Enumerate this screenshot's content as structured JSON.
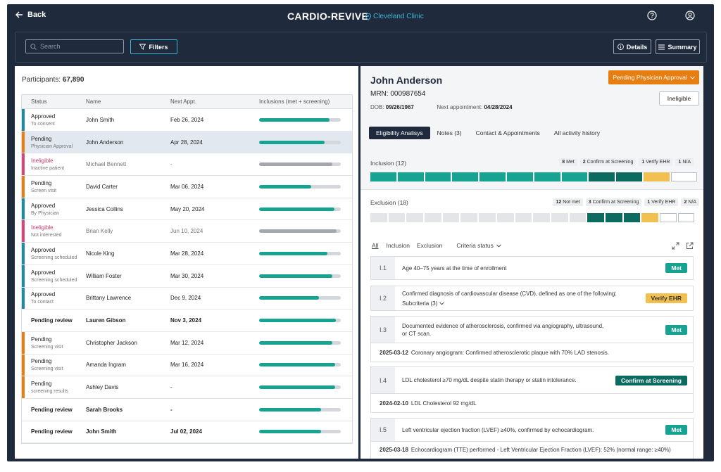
{
  "header": {
    "back_label": "Back",
    "title": "CARDIO-REVIVE",
    "location": "Cleveland Clinic"
  },
  "toolbar": {
    "search_placeholder": "Search",
    "filters_label": "Filters",
    "details_label": "Details",
    "summary_label": "Summary"
  },
  "participants": {
    "label": "Participants:",
    "count": "67,890",
    "columns": [
      "Status",
      "Name",
      "Next Appt.",
      "Inclusions (met + screening)"
    ],
    "rows": [
      {
        "status": "Approved",
        "sub": "To consent",
        "name": "John Smith",
        "appt": "Feb 26, 2024",
        "progress": 0.86,
        "bar": "#1c8aa6",
        "muted": false,
        "bold": false
      },
      {
        "status": "Pending",
        "sub": "Physician Approval",
        "name": "John Anderson",
        "appt": "Apr 28, 2024",
        "progress": 0.8,
        "bar": "#e77e11",
        "muted": false,
        "bold": false
      },
      {
        "status": "Ineligible",
        "sub": "Inactive patient",
        "name": "Michael Bennett",
        "appt": "-",
        "progress": 0.9,
        "bar": "#d6477a",
        "muted": true,
        "bold": false
      },
      {
        "status": "Pending",
        "sub": "Screen visit",
        "name": "David Carter",
        "appt": "Mar 06, 2024",
        "progress": 0.64,
        "bar": "#e77e11",
        "muted": false,
        "bold": false
      },
      {
        "status": "Approved",
        "sub": "By Physician",
        "name": "Jessica Collins",
        "appt": "May 20, 2024",
        "progress": 0.92,
        "bar": "#1c8aa6",
        "muted": false,
        "bold": false
      },
      {
        "status": "Ineligible",
        "sub": "Not interested",
        "name": "Brian Kelly",
        "appt": "Jun 10, 2024",
        "progress": 0.95,
        "bar": "#d6477a",
        "muted": true,
        "bold": false
      },
      {
        "status": "Approved",
        "sub": "Screening scheduled",
        "name": "Nicole King",
        "appt": "Mar 28, 2024",
        "progress": 0.84,
        "bar": "#1c8aa6",
        "muted": false,
        "bold": false
      },
      {
        "status": "Approved",
        "sub": "Screening scheduled",
        "name": "William Foster",
        "appt": "Mar 30, 2024",
        "progress": 0.9,
        "bar": "#1c8aa6",
        "muted": false,
        "bold": false
      },
      {
        "status": "Approved",
        "sub": "To contact",
        "name": "Brittany Lawrence",
        "appt": "Dec 9, 2024",
        "progress": 0.73,
        "bar": "#1c8aa6",
        "muted": false,
        "bold": false
      },
      {
        "status": "Pending review",
        "sub": "",
        "name": "Lauren Gibson",
        "appt": "Nov 3, 2024",
        "progress": 0.94,
        "bar": "",
        "muted": false,
        "bold": true
      },
      {
        "status": "Pending",
        "sub": "Screening visit",
        "name": "Christopher Jackson",
        "appt": "Mar 12, 2024",
        "progress": 0.9,
        "bar": "#e77e11",
        "muted": false,
        "bold": false
      },
      {
        "status": "Pending",
        "sub": "Screening visit",
        "name": "Amanda Ingram",
        "appt": "Mar 16, 2024",
        "progress": 0.93,
        "bar": "#e77e11",
        "muted": false,
        "bold": false
      },
      {
        "status": "Pending",
        "sub": "screening results",
        "name": "Ashley Davis",
        "appt": "-",
        "progress": 0.93,
        "bar": "#e77e11",
        "muted": false,
        "bold": false
      },
      {
        "status": "Pending review",
        "sub": "",
        "name": "Sarah Brooks",
        "appt": "-",
        "progress": 0.76,
        "bar": "",
        "muted": false,
        "bold": true
      },
      {
        "status": "Pending review",
        "sub": "",
        "name": "John Smith",
        "appt": "Jul 02, 2024",
        "progress": 0.76,
        "bar": "",
        "muted": false,
        "bold": true
      }
    ]
  },
  "patient": {
    "name": "John Anderson",
    "mrn": "MRN: 000987654",
    "dob_label": "DOB:",
    "dob": "09/26/1967",
    "next_label": "Next appointment:",
    "next": "04/28/2024",
    "status_button": "Pending Physician Approval",
    "ineligible_button": "Ineligible"
  },
  "tabs": [
    "Eligibility Analisys",
    "Notes (3)",
    "Contact & Appointments",
    "All activity history"
  ],
  "inclusion": {
    "label": "Inclusion (12)",
    "chips": [
      {
        "num": "8",
        "text": "Met"
      },
      {
        "num": "2",
        "text": "Confirm at Screening"
      },
      {
        "num": "1",
        "text": "Verify EHR"
      },
      {
        "num": "1",
        "text": "N/A"
      }
    ],
    "segments": [
      "met",
      "met",
      "met",
      "met",
      "met",
      "met",
      "met",
      "met",
      "confirm",
      "confirm",
      "verify",
      "na"
    ]
  },
  "exclusion": {
    "label": "Exclusion (18)",
    "chips": [
      {
        "num": "12",
        "text": "Not met"
      },
      {
        "num": "3",
        "text": "Confirm at Screening"
      },
      {
        "num": "1",
        "text": "Verify EHR"
      },
      {
        "num": "2",
        "text": "N/A"
      }
    ],
    "segments": [
      "notmet",
      "notmet",
      "notmet",
      "notmet",
      "notmet",
      "notmet",
      "notmet",
      "notmet",
      "notmet",
      "notmet",
      "notmet",
      "notmet",
      "confirm",
      "confirm",
      "confirm",
      "verify",
      "na",
      "na"
    ]
  },
  "colors": {
    "met": "#16a392",
    "confirm": "#0b6b60",
    "verify": "#f1c050",
    "notmet": "#e3e5e8",
    "na": "#ffffff"
  },
  "filters": [
    "All",
    "Inclusion",
    "Exclusion",
    "Criteria status"
  ],
  "criteria": [
    {
      "id": "I.1",
      "text": "Age 40–75 years at the time of enrollment",
      "badge": "Met",
      "type": "met"
    },
    {
      "id": "I.2",
      "text": "Confirmed diagnosis of cardiovascular disease (CVD), defined as one of the following:",
      "sub": "Subcriteria (3)",
      "badge": "Verify EHR",
      "type": "ehr"
    },
    {
      "id": "I.3",
      "text": "Documented evidence of atherosclerosis, confirmed via angiography, ultrasound, or CT scan.",
      "badge": "Met",
      "type": "met",
      "ev_date": "2025-03-12",
      "ev_text": "Coronary angiogram: Confirmed atherosclerotic plaque with 70% LAD stenosis."
    },
    {
      "id": "I.4",
      "text": "LDL cholesterol ≥70 mg/dL despite statin therapy or statin intolerance.",
      "badge": "Confirm at Screening",
      "type": "cs",
      "ev_date": "2024-02-10",
      "ev_text": "LDL Cholesterol 92 mg/dL"
    },
    {
      "id": "I.5",
      "text": "Left ventricular ejection fraction (LVEF) ≥40%, confirmed by echocardiogram.",
      "badge": "Met",
      "type": "met",
      "ev_date": "2025-03-18",
      "ev_text": "Echocardiogram (TTE) performed - Left Ventricular Ejection Fraction (LVEF): 52% (normal range: ≥40%)"
    }
  ]
}
